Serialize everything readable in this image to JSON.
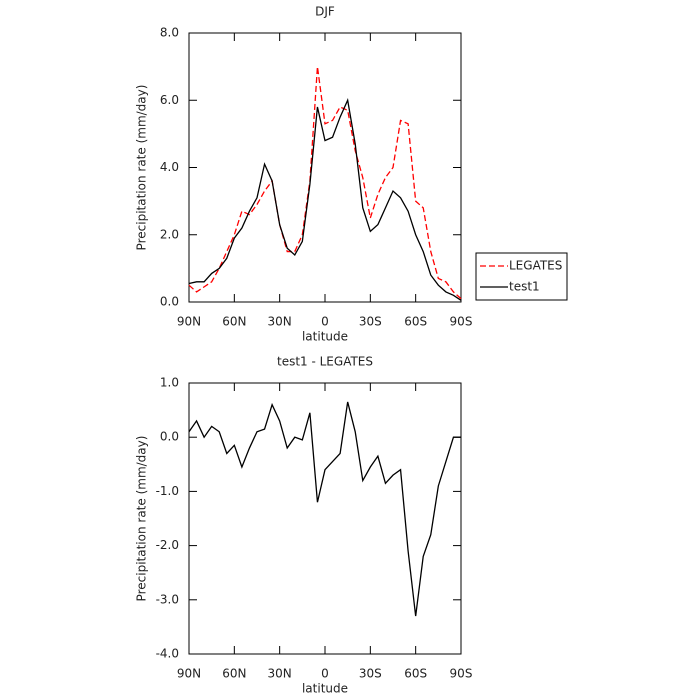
{
  "chart_data": [
    {
      "type": "line",
      "title": "DJF",
      "xlabel": "latitude",
      "ylabel": "Precipitation rate (mm/day)",
      "x": [
        90,
        85,
        80,
        75,
        70,
        65,
        60,
        55,
        50,
        45,
        40,
        35,
        30,
        25,
        20,
        15,
        10,
        5,
        0,
        -5,
        -10,
        -15,
        -20,
        -25,
        -30,
        -35,
        -40,
        -45,
        -50,
        -55,
        -60,
        -65,
        -70,
        -75,
        -80,
        -85,
        -90
      ],
      "series": [
        {
          "name": "LEGATES",
          "color": "#ff0000",
          "dash": true,
          "values": [
            0.5,
            0.3,
            0.45,
            0.6,
            1.0,
            1.5,
            2.0,
            2.7,
            2.6,
            2.9,
            3.3,
            3.6,
            2.3,
            1.5,
            1.5,
            2.0,
            3.6,
            7.0,
            5.3,
            5.4,
            5.8,
            5.7,
            4.5,
            3.7,
            2.5,
            3.2,
            3.7,
            4.0,
            5.4,
            5.3,
            3.0,
            2.8,
            1.5,
            0.7,
            0.6,
            0.3,
            0.1
          ]
        },
        {
          "name": "test1",
          "color": "#000000",
          "dash": false,
          "values": [
            0.55,
            0.6,
            0.6,
            0.85,
            1.0,
            1.3,
            1.9,
            2.2,
            2.7,
            3.1,
            4.1,
            3.6,
            2.3,
            1.6,
            1.4,
            1.8,
            3.5,
            5.8,
            4.8,
            4.9,
            5.5,
            6.0,
            4.7,
            2.8,
            2.1,
            2.3,
            2.8,
            3.3,
            3.1,
            2.7,
            2.0,
            1.5,
            0.8,
            0.5,
            0.3,
            0.2,
            0.05
          ]
        }
      ],
      "xlim": [
        90,
        -90
      ],
      "xticks": [
        {
          "value": 90,
          "label": "90N"
        },
        {
          "value": 60,
          "label": "60N"
        },
        {
          "value": 30,
          "label": "30N"
        },
        0,
        {
          "value": -30,
          "label": "30S"
        },
        {
          "value": -60,
          "label": "60S"
        },
        {
          "value": -90,
          "label": "90S"
        }
      ],
      "ylim": [
        0,
        8
      ],
      "yticks": [
        {
          "value": 0,
          "label": "0.0"
        },
        {
          "value": 2,
          "label": "2.0"
        },
        {
          "value": 4,
          "label": "4.0"
        },
        {
          "value": 6,
          "label": "6.0"
        },
        {
          "value": 8,
          "label": "8.0"
        }
      ],
      "legend": "outside-right"
    },
    {
      "type": "line",
      "title": "test1 - LEGATES",
      "xlabel": "latitude",
      "ylabel": "Precipitation rate (mm/day)",
      "x": [
        90,
        85,
        80,
        75,
        70,
        65,
        60,
        55,
        50,
        45,
        40,
        35,
        30,
        25,
        20,
        15,
        10,
        5,
        0,
        -5,
        -10,
        -15,
        -20,
        -25,
        -30,
        -35,
        -40,
        -45,
        -50,
        -55,
        -60,
        -65,
        -70,
        -75,
        -80,
        -85,
        -90
      ],
      "values": [
        0.1,
        0.3,
        0.0,
        0.2,
        0.1,
        -0.3,
        -0.15,
        -0.55,
        -0.2,
        0.1,
        0.15,
        0.6,
        0.3,
        -0.2,
        0.0,
        -0.05,
        0.45,
        -1.2,
        -0.6,
        -0.45,
        -0.3,
        0.65,
        0.1,
        -0.8,
        -0.55,
        -0.35,
        -0.85,
        -0.7,
        -0.6,
        -2.1,
        -3.3,
        -2.2,
        -1.8,
        -0.9,
        -0.45,
        0.0,
        0.0
      ],
      "color": "#000000",
      "xlim": [
        90,
        -90
      ],
      "xticks": [
        {
          "value": 90,
          "label": "90N"
        },
        {
          "value": 60,
          "label": "60N"
        },
        {
          "value": 30,
          "label": "30N"
        },
        0,
        {
          "value": -30,
          "label": "30S"
        },
        {
          "value": -60,
          "label": "60S"
        },
        {
          "value": -90,
          "label": "90S"
        }
      ],
      "ylim": [
        -4,
        1
      ],
      "yticks": [
        {
          "value": -4,
          "label": "-4.0"
        },
        {
          "value": -3,
          "label": "-3.0"
        },
        {
          "value": -2,
          "label": "-2.0"
        },
        {
          "value": -1,
          "label": "-1.0"
        },
        {
          "value": 0,
          "label": "0.0"
        },
        {
          "value": 1,
          "label": "1.0"
        }
      ]
    }
  ]
}
